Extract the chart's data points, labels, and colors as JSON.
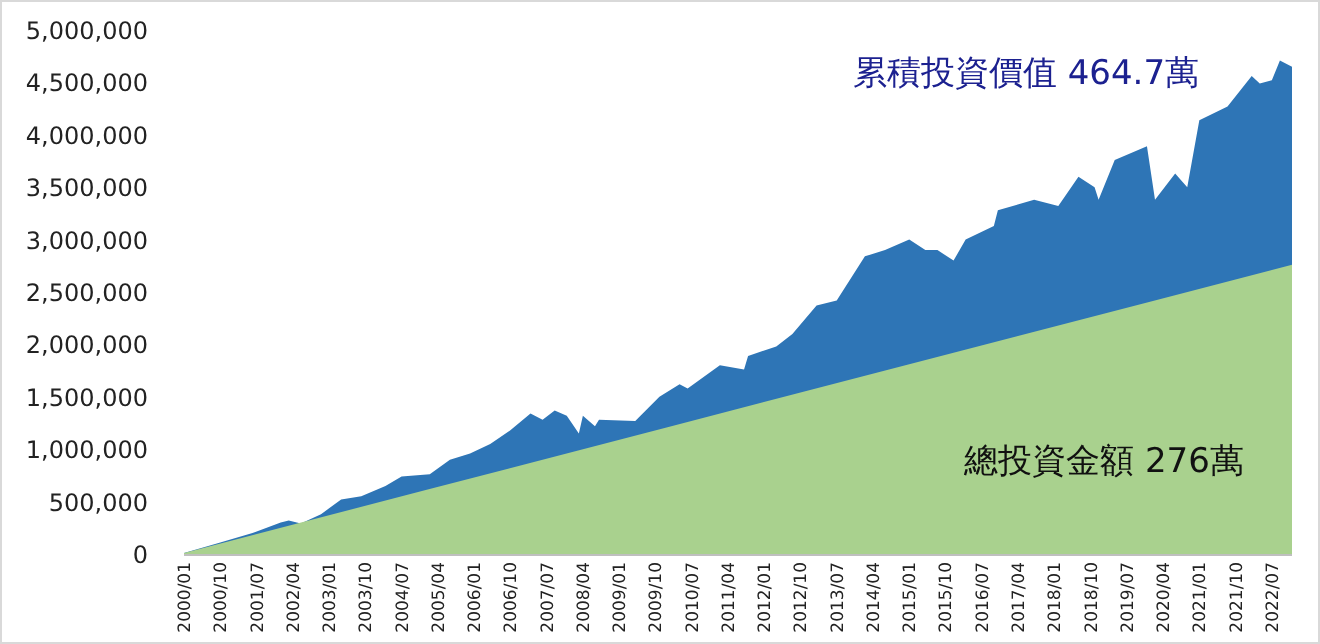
{
  "chart_data": {
    "type": "area",
    "xlim": [
      "2000-01",
      "2022-12"
    ],
    "ylim": [
      0,
      5000000
    ],
    "yticks": [
      {
        "value": 0,
        "label": "0"
      },
      {
        "value": 500000,
        "label": "500,000"
      },
      {
        "value": 1000000,
        "label": "1,000,000"
      },
      {
        "value": 1500000,
        "label": "1,500,000"
      },
      {
        "value": 2000000,
        "label": "2,000,000"
      },
      {
        "value": 2500000,
        "label": "2,500,000"
      },
      {
        "value": 3000000,
        "label": "3,000,000"
      },
      {
        "value": 3500000,
        "label": "3,500,000"
      },
      {
        "value": 4000000,
        "label": "4,000,000"
      },
      {
        "value": 4500000,
        "label": "4,500,000"
      },
      {
        "value": 5000000,
        "label": "5,000,000"
      }
    ],
    "xticks": [
      {
        "value": "2000-01",
        "label": "2000/01"
      },
      {
        "value": "2000-10",
        "label": "2000/10"
      },
      {
        "value": "2001-07",
        "label": "2001/07"
      },
      {
        "value": "2002-04",
        "label": "2002/04"
      },
      {
        "value": "2003-01",
        "label": "2003/01"
      },
      {
        "value": "2003-10",
        "label": "2003/10"
      },
      {
        "value": "2004-07",
        "label": "2004/07"
      },
      {
        "value": "2005-04",
        "label": "2005/04"
      },
      {
        "value": "2006-01",
        "label": "2006/01"
      },
      {
        "value": "2006-10",
        "label": "2006/10"
      },
      {
        "value": "2007-07",
        "label": "2007/07"
      },
      {
        "value": "2008-04",
        "label": "2008/04"
      },
      {
        "value": "2009-01",
        "label": "2009/01"
      },
      {
        "value": "2009-10",
        "label": "2009/10"
      },
      {
        "value": "2010-07",
        "label": "2010/07"
      },
      {
        "value": "2011-04",
        "label": "2011/04"
      },
      {
        "value": "2012-01",
        "label": "2012/01"
      },
      {
        "value": "2012-10",
        "label": "2012/10"
      },
      {
        "value": "2013-07",
        "label": "2013/07"
      },
      {
        "value": "2014-04",
        "label": "2014/04"
      },
      {
        "value": "2015-01",
        "label": "2015/01"
      },
      {
        "value": "2015-10",
        "label": "2015/10"
      },
      {
        "value": "2016-07",
        "label": "2016/07"
      },
      {
        "value": "2017-04",
        "label": "2017/04"
      },
      {
        "value": "2018-01",
        "label": "2018/01"
      },
      {
        "value": "2018-10",
        "label": "2018/10"
      },
      {
        "value": "2019-07",
        "label": "2019/07"
      },
      {
        "value": "2020-04",
        "label": "2020/04"
      },
      {
        "value": "2021-01",
        "label": "2021/01"
      },
      {
        "value": "2021-10",
        "label": "2021/10"
      },
      {
        "value": "2022-07",
        "label": "2022/07"
      }
    ],
    "series": [
      {
        "name": "累積投資價值 464.7萬",
        "color": "#2e75b6",
        "x": [
          "2000-01",
          "2000-10",
          "2001-06",
          "2002-01",
          "2002-03",
          "2002-06",
          "2002-11",
          "2003-04",
          "2003-09",
          "2004-03",
          "2004-07",
          "2005-02",
          "2005-07",
          "2005-12",
          "2006-05",
          "2006-10",
          "2007-03",
          "2007-06",
          "2007-09",
          "2007-12",
          "2008-03",
          "2008-04",
          "2008-07",
          "2008-08",
          "2009-05",
          "2009-11",
          "2010-04",
          "2010-06",
          "2011-02",
          "2011-08",
          "2011-09",
          "2012-04",
          "2012-08",
          "2013-02",
          "2013-07",
          "2014-02",
          "2014-07",
          "2015-01",
          "2015-05",
          "2015-08",
          "2015-12",
          "2016-03",
          "2016-10",
          "2016-11",
          "2017-08",
          "2018-02",
          "2018-07",
          "2018-11",
          "2018-12",
          "2019-04",
          "2019-12",
          "2020-02",
          "2020-07",
          "2020-10",
          "2021-01",
          "2021-08",
          "2022-02",
          "2022-04",
          "2022-07",
          "2022-09",
          "2022-12"
        ],
        "values": [
          10000,
          110000,
          200000,
          300000,
          320000,
          290000,
          380000,
          520000,
          550000,
          650000,
          740000,
          760000,
          900000,
          960000,
          1050000,
          1180000,
          1340000,
          1280000,
          1370000,
          1320000,
          1150000,
          1320000,
          1220000,
          1280000,
          1270000,
          1500000,
          1620000,
          1580000,
          1800000,
          1760000,
          1890000,
          1980000,
          2100000,
          2370000,
          2420000,
          2840000,
          2900000,
          3000000,
          2900000,
          2900000,
          2800000,
          3000000,
          3130000,
          3280000,
          3380000,
          3320000,
          3600000,
          3500000,
          3380000,
          3760000,
          3890000,
          3380000,
          3630000,
          3500000,
          4140000,
          4270000,
          4560000,
          4490000,
          4520000,
          4710000,
          4650000
        ]
      },
      {
        "name": "總投資金額 276萬",
        "color": "#a9d18e",
        "x": [
          "2000-01",
          "2005-01",
          "2010-01",
          "2015-01",
          "2020-01",
          "2022-12"
        ],
        "values": [
          10000,
          610000,
          1210000,
          1810000,
          2410000,
          2760000
        ]
      }
    ]
  }
}
